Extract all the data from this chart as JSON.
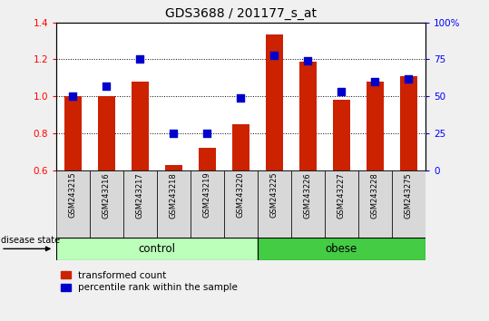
{
  "title": "GDS3688 / 201177_s_at",
  "samples": [
    "GSM243215",
    "GSM243216",
    "GSM243217",
    "GSM243218",
    "GSM243219",
    "GSM243220",
    "GSM243225",
    "GSM243226",
    "GSM243227",
    "GSM243228",
    "GSM243275"
  ],
  "transformed_count": [
    1.0,
    1.0,
    1.08,
    0.63,
    0.72,
    0.85,
    1.335,
    1.19,
    0.98,
    1.08,
    1.11
  ],
  "percentile_rank": [
    50,
    57,
    75,
    25,
    25,
    49,
    78,
    74,
    53,
    60,
    62
  ],
  "groups": [
    {
      "label": "control",
      "start": 0,
      "end": 6,
      "color": "#bbffbb"
    },
    {
      "label": "obese",
      "start": 6,
      "end": 11,
      "color": "#44cc44"
    }
  ],
  "ylim_left": [
    0.6,
    1.4
  ],
  "ylim_right": [
    0,
    100
  ],
  "yticks_left": [
    0.6,
    0.8,
    1.0,
    1.2,
    1.4
  ],
  "yticks_right": [
    0,
    25,
    50,
    75,
    100
  ],
  "ytick_labels_right": [
    "0",
    "25",
    "50",
    "75",
    "100%"
  ],
  "bar_color": "#cc2200",
  "dot_color": "#0000cc",
  "bar_width": 0.5,
  "dot_size": 30,
  "legend_items": [
    "transformed count",
    "percentile rank within the sample"
  ],
  "background_color": "#f0f0f0",
  "plot_bg_color": "#ffffff"
}
